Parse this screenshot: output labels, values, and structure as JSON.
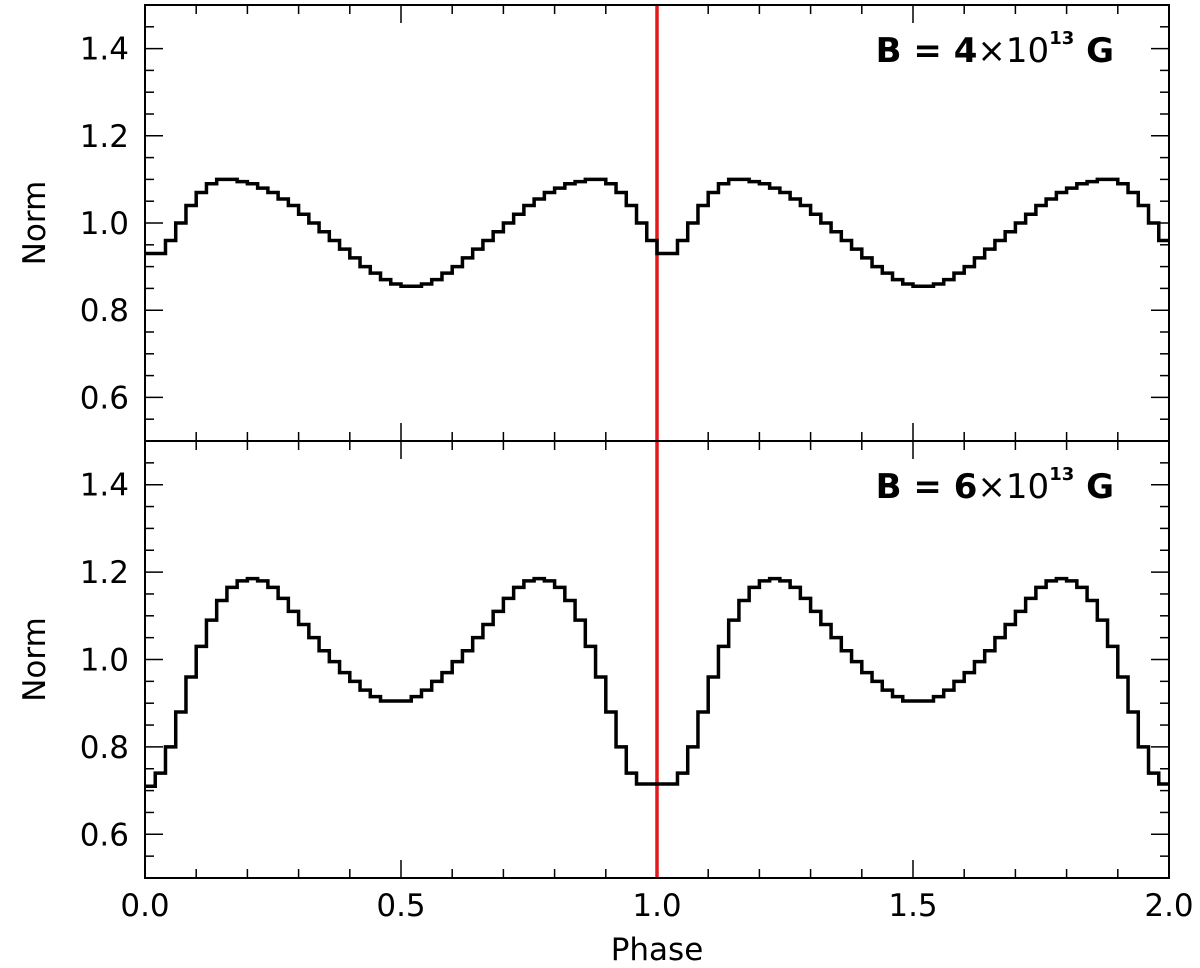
{
  "chart_data": [
    {
      "type": "line",
      "step": true,
      "annotation": {
        "prefix": "B = ",
        "mantissa": "4",
        "times": "×10",
        "exponent": "13",
        "unit": " G"
      },
      "ylabel": "Norm",
      "xlabel": "",
      "xlim": [
        0.0,
        2.0
      ],
      "ylim": [
        0.5,
        1.5
      ],
      "yticks": [
        "0.6",
        "0.8",
        "1.0",
        "1.2",
        "1.4"
      ],
      "vline_x": 1.0,
      "x": [
        0.0,
        0.02,
        0.04,
        0.06,
        0.08,
        0.1,
        0.12,
        0.14,
        0.16,
        0.18,
        0.2,
        0.22,
        0.24,
        0.26,
        0.28,
        0.3,
        0.32,
        0.34,
        0.36,
        0.38,
        0.4,
        0.42,
        0.44,
        0.46,
        0.48,
        0.5,
        0.52,
        0.54,
        0.56,
        0.58,
        0.6,
        0.62,
        0.64,
        0.66,
        0.68,
        0.7,
        0.72,
        0.74,
        0.76,
        0.78,
        0.8,
        0.82,
        0.84,
        0.86,
        0.88,
        0.9,
        0.92,
        0.94,
        0.96,
        0.98,
        1.0,
        1.02,
        1.04,
        1.06,
        1.08,
        1.1,
        1.12,
        1.14,
        1.16,
        1.18,
        1.2,
        1.22,
        1.24,
        1.26,
        1.28,
        1.3,
        1.32,
        1.34,
        1.36,
        1.38,
        1.4,
        1.42,
        1.44,
        1.46,
        1.48,
        1.5,
        1.52,
        1.54,
        1.56,
        1.58,
        1.6,
        1.62,
        1.64,
        1.66,
        1.68,
        1.7,
        1.72,
        1.74,
        1.76,
        1.78,
        1.8,
        1.82,
        1.84,
        1.86,
        1.88,
        1.9,
        1.92,
        1.94,
        1.96,
        1.98
      ],
      "values": [
        0.93,
        0.93,
        0.96,
        1.0,
        1.04,
        1.07,
        1.09,
        1.1,
        1.1,
        1.095,
        1.09,
        1.08,
        1.07,
        1.055,
        1.04,
        1.02,
        1.0,
        0.98,
        0.96,
        0.94,
        0.92,
        0.9,
        0.885,
        0.87,
        0.86,
        0.855,
        0.855,
        0.86,
        0.87,
        0.885,
        0.9,
        0.92,
        0.94,
        0.96,
        0.98,
        1.0,
        1.02,
        1.04,
        1.055,
        1.07,
        1.08,
        1.09,
        1.095,
        1.1,
        1.1,
        1.09,
        1.07,
        1.04,
        1.0,
        0.96,
        0.93,
        0.93,
        0.96,
        1.0,
        1.04,
        1.07,
        1.09,
        1.1,
        1.1,
        1.095,
        1.09,
        1.08,
        1.07,
        1.055,
        1.04,
        1.02,
        1.0,
        0.98,
        0.96,
        0.94,
        0.92,
        0.9,
        0.885,
        0.87,
        0.86,
        0.855,
        0.855,
        0.86,
        0.87,
        0.885,
        0.9,
        0.92,
        0.94,
        0.96,
        0.98,
        1.0,
        1.02,
        1.04,
        1.055,
        1.07,
        1.08,
        1.09,
        1.095,
        1.1,
        1.1,
        1.09,
        1.07,
        1.04,
        1.0,
        0.96
      ],
      "line_color": "#000000",
      "vline_color": "#e31a1c"
    },
    {
      "type": "line",
      "step": true,
      "annotation": {
        "prefix": "B = ",
        "mantissa": "6",
        "times": "×10",
        "exponent": "13",
        "unit": " G"
      },
      "ylabel": "Norm",
      "xlabel": "Phase",
      "xlim": [
        0.0,
        2.0
      ],
      "ylim": [
        0.5,
        1.5
      ],
      "yticks": [
        "0.6",
        "0.8",
        "1.0",
        "1.2",
        "1.4"
      ],
      "xticks": [
        "0.0",
        "0.5",
        "1.0",
        "1.5",
        "2.0"
      ],
      "vline_x": 1.0,
      "x": [
        0.0,
        0.02,
        0.04,
        0.06,
        0.08,
        0.1,
        0.12,
        0.14,
        0.16,
        0.18,
        0.2,
        0.22,
        0.24,
        0.26,
        0.28,
        0.3,
        0.32,
        0.34,
        0.36,
        0.38,
        0.4,
        0.42,
        0.44,
        0.46,
        0.48,
        0.5,
        0.52,
        0.54,
        0.56,
        0.58,
        0.6,
        0.62,
        0.64,
        0.66,
        0.68,
        0.7,
        0.72,
        0.74,
        0.76,
        0.78,
        0.8,
        0.82,
        0.84,
        0.86,
        0.88,
        0.9,
        0.92,
        0.94,
        0.96,
        0.98,
        1.0,
        1.02,
        1.04,
        1.06,
        1.08,
        1.1,
        1.12,
        1.14,
        1.16,
        1.18,
        1.2,
        1.22,
        1.24,
        1.26,
        1.28,
        1.3,
        1.32,
        1.34,
        1.36,
        1.38,
        1.4,
        1.42,
        1.44,
        1.46,
        1.48,
        1.5,
        1.52,
        1.54,
        1.56,
        1.58,
        1.6,
        1.62,
        1.64,
        1.66,
        1.68,
        1.7,
        1.72,
        1.74,
        1.76,
        1.78,
        1.8,
        1.82,
        1.84,
        1.86,
        1.88,
        1.9,
        1.92,
        1.94,
        1.96,
        1.98
      ],
      "values": [
        0.71,
        0.74,
        0.8,
        0.88,
        0.96,
        1.03,
        1.09,
        1.135,
        1.165,
        1.18,
        1.185,
        1.18,
        1.165,
        1.14,
        1.11,
        1.08,
        1.05,
        1.02,
        0.995,
        0.97,
        0.95,
        0.93,
        0.915,
        0.905,
        0.905,
        0.905,
        0.915,
        0.93,
        0.95,
        0.97,
        0.995,
        1.02,
        1.05,
        1.08,
        1.11,
        1.14,
        1.165,
        1.18,
        1.185,
        1.18,
        1.165,
        1.135,
        1.09,
        1.03,
        0.96,
        0.88,
        0.8,
        0.74,
        0.715,
        0.715,
        0.715,
        0.715,
        0.74,
        0.8,
        0.88,
        0.96,
        1.03,
        1.09,
        1.135,
        1.165,
        1.18,
        1.185,
        1.18,
        1.165,
        1.14,
        1.11,
        1.08,
        1.05,
        1.02,
        0.995,
        0.97,
        0.95,
        0.93,
        0.915,
        0.905,
        0.905,
        0.905,
        0.915,
        0.93,
        0.95,
        0.97,
        0.995,
        1.02,
        1.05,
        1.08,
        1.11,
        1.14,
        1.165,
        1.18,
        1.185,
        1.18,
        1.165,
        1.135,
        1.09,
        1.03,
        0.96,
        0.88,
        0.8,
        0.74,
        0.715
      ],
      "line_color": "#000000",
      "vline_color": "#e31a1c"
    }
  ]
}
